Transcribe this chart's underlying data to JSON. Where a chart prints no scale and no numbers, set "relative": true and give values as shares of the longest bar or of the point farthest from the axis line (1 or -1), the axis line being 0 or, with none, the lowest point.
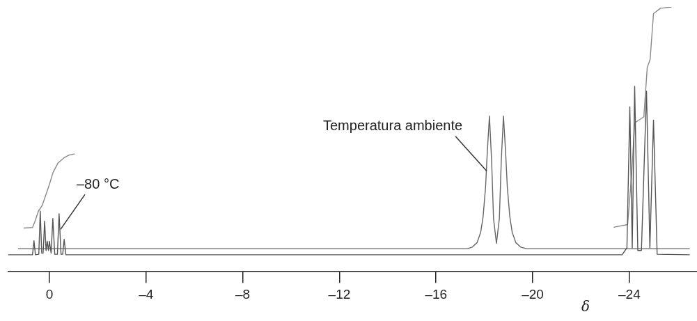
{
  "chart_data": {
    "type": "line",
    "relative": true,
    "xlabel": "δ",
    "xlim": [
      1.7,
      -26.8
    ],
    "xticks": [
      0,
      {
        "value": -4,
        "label": "–4"
      },
      {
        "value": -8,
        "label": "–8"
      },
      {
        "value": -12,
        "label": "–12"
      },
      {
        "value": -16,
        "label": "–16"
      },
      {
        "value": -20,
        "label": "–20"
      },
      {
        "value": -24,
        "label": "–24"
      }
    ],
    "legend": false,
    "series": [
      {
        "color": "#555555",
        "x": [
          1.7,
          0.7,
          0.64,
          0.58,
          0.44,
          0.38,
          0.32,
          0.26,
          0.2,
          0.14,
          0.09,
          0.04,
          0,
          -0.07,
          -0.14,
          -0.22,
          -0.33,
          -0.4,
          -0.48,
          -0.55,
          -0.61,
          -0.68,
          -23.7,
          -23.9,
          -24.02,
          -24.12,
          -24.22,
          -24.35,
          -24.5,
          -24.71,
          -24.85,
          -25,
          -25.15,
          -26.5
        ],
        "values": [
          0.064,
          0.064,
          0.117,
          0.064,
          0.066,
          0.229,
          0.07,
          0.07,
          0.191,
          0.08,
          0.115,
          0.08,
          0.115,
          0.07,
          0.201,
          0.066,
          0.066,
          0.219,
          0.066,
          0.066,
          0.122,
          0.064,
          0.064,
          0.09,
          0.623,
          0.09,
          0.7,
          0.08,
          0.08,
          0.682,
          0.09,
          0.573,
          0.066,
          0.064
        ]
      },
      {
        "color": "#666666",
        "x": [
          1.3,
          -17.3,
          -17.5,
          -17.7,
          -17.85,
          -17.95,
          -18.05,
          -18.12,
          -18.21,
          -18.3,
          -18.38,
          -18.5,
          -18.62,
          -18.7,
          -18.79,
          -18.88,
          -18.95,
          -19.05,
          -19.15,
          -19.3,
          -19.5,
          -19.75,
          -26.5
        ],
        "values": [
          0.087,
          0.087,
          0.093,
          0.11,
          0.15,
          0.21,
          0.32,
          0.45,
          0.588,
          0.42,
          0.2,
          0.107,
          0.2,
          0.42,
          0.588,
          0.45,
          0.32,
          0.21,
          0.15,
          0.11,
          0.093,
          0.087,
          0.087
        ]
      },
      {
        "color": "#888888",
        "x": [
          1.07,
          0.7,
          0.6,
          0.45,
          0.3,
          0.15,
          0,
          -0.15,
          -0.35,
          -0.6,
          -0.8,
          -1.04
        ],
        "values": [
          0.165,
          0.167,
          0.19,
          0.23,
          0.25,
          0.29,
          0.33,
          0.375,
          0.41,
          0.43,
          0.44,
          0.445
        ]
      },
      {
        "color": "#888888",
        "x": [
          -23.35,
          -23.93,
          -24.1,
          -24.22,
          -24.6,
          -24.74,
          -24.86,
          -25,
          -25.29,
          -25.75
        ],
        "values": [
          0.168,
          0.178,
          0.372,
          0.562,
          0.585,
          0.771,
          0.802,
          0.975,
          0.995,
          1.0
        ]
      }
    ],
    "annotations": [
      {
        "text": "Temperatura ambiente",
        "x": -18.1,
        "y": 0.38
      },
      {
        "text": "–80 °C",
        "x": -0.46,
        "y": 0.16
      }
    ]
  }
}
